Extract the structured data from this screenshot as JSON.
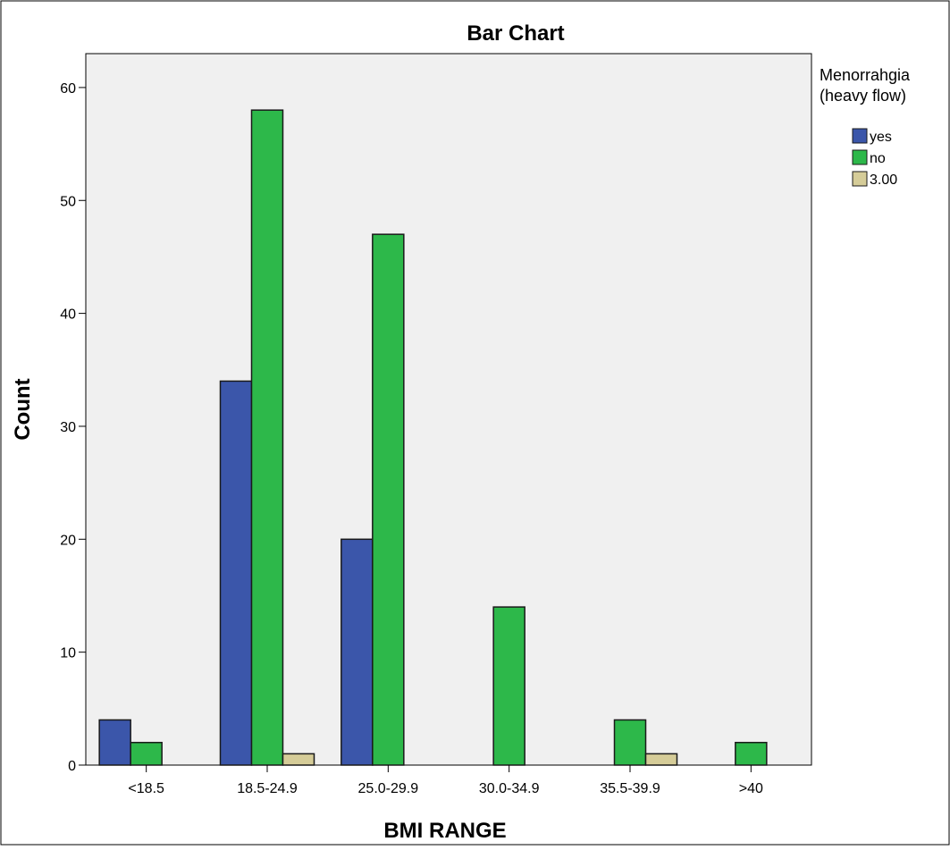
{
  "chart_data": {
    "type": "bar",
    "title": "Bar Chart",
    "xlabel": "BMI RANGE",
    "ylabel": "Count",
    "categories": [
      "<18.5",
      "18.5-24.9",
      "25.0-29.9",
      "30.0-34.9",
      "35.5-39.9",
      ">40"
    ],
    "series": [
      {
        "name": "yes",
        "color": "#3b56aa",
        "values": [
          4,
          34,
          20,
          0,
          0,
          0
        ]
      },
      {
        "name": "no",
        "color": "#2db84a",
        "values": [
          2,
          58,
          47,
          14,
          4,
          2
        ]
      },
      {
        "name": "3.00",
        "color": "#d5cc98",
        "values": [
          0,
          1,
          0,
          0,
          1,
          0
        ]
      }
    ],
    "yticks": [
      0,
      10,
      20,
      30,
      40,
      50,
      60
    ],
    "ylim": [
      0,
      63
    ],
    "grid": false,
    "legend": {
      "title_lines": [
        "Menorrahgia",
        "(heavy flow)"
      ],
      "position": "right"
    },
    "colors": {
      "plot_background": "#f0f0f0",
      "bar_outline": "#1a1a1a",
      "axis": "#000000"
    }
  }
}
